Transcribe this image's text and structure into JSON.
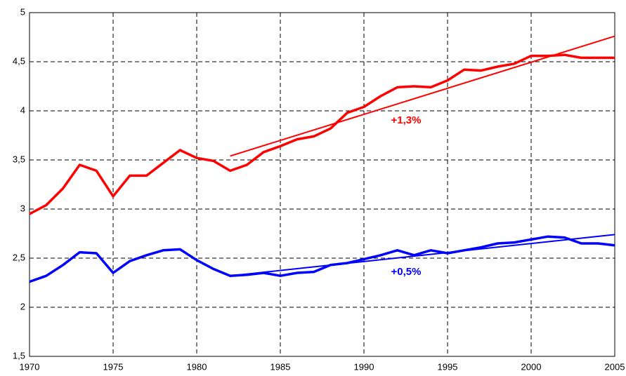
{
  "chart_data": {
    "type": "line",
    "x": [
      1970,
      1971,
      1972,
      1973,
      1974,
      1975,
      1976,
      1977,
      1978,
      1979,
      1980,
      1981,
      1982,
      1983,
      1984,
      1985,
      1986,
      1987,
      1988,
      1989,
      1990,
      1991,
      1992,
      1993,
      1994,
      1995,
      1996,
      1997,
      1998,
      1999,
      2000,
      2001,
      2002,
      2003,
      2004,
      2005
    ],
    "series": [
      {
        "color": "#ff0000",
        "values": [
          2.95,
          3.04,
          3.21,
          3.45,
          3.39,
          3.13,
          3.34,
          3.34,
          3.47,
          3.6,
          3.52,
          3.49,
          3.39,
          3.45,
          3.58,
          3.64,
          3.71,
          3.74,
          3.82,
          3.98,
          4.04,
          4.15,
          4.24,
          4.25,
          4.24,
          4.31,
          4.42,
          4.41,
          4.45,
          4.48,
          4.56,
          4.56,
          4.57,
          4.54,
          4.54,
          4.54
        ]
      },
      {
        "color": "#0000ff",
        "values": [
          2.26,
          2.32,
          2.43,
          2.56,
          2.55,
          2.35,
          2.47,
          2.53,
          2.58,
          2.59,
          2.48,
          2.39,
          2.32,
          2.33,
          2.35,
          2.32,
          2.35,
          2.36,
          2.43,
          2.45,
          2.49,
          2.53,
          2.58,
          2.53,
          2.58,
          2.55,
          2.58,
          2.61,
          2.65,
          2.66,
          2.69,
          2.72,
          2.71,
          2.65,
          2.65,
          2.63
        ]
      }
    ],
    "trendlines": [
      {
        "color": "#ff0000",
        "x": [
          1982,
          2005
        ],
        "values": [
          3.54,
          4.76
        ]
      },
      {
        "color": "#0000ff",
        "x": [
          1982,
          2005
        ],
        "values": [
          2.32,
          2.74
        ]
      }
    ],
    "annotations": [
      {
        "text": "+1,3%",
        "color": "#ff0000"
      },
      {
        "text": "+0,5%",
        "color": "#0000ff"
      }
    ],
    "xlim": [
      1970,
      2005
    ],
    "xticks": [
      1970,
      1975,
      1980,
      1985,
      1990,
      1995,
      2000,
      2005
    ],
    "ylim": [
      1.5,
      5
    ],
    "yticks": [
      {
        "value": 1.5,
        "label": "1,5"
      },
      2,
      {
        "value": 2.5,
        "label": "2,5"
      },
      3,
      {
        "value": 3.5,
        "label": "3,5"
      },
      4,
      {
        "value": 4.5,
        "label": "4,5"
      },
      5
    ],
    "grid": true
  }
}
